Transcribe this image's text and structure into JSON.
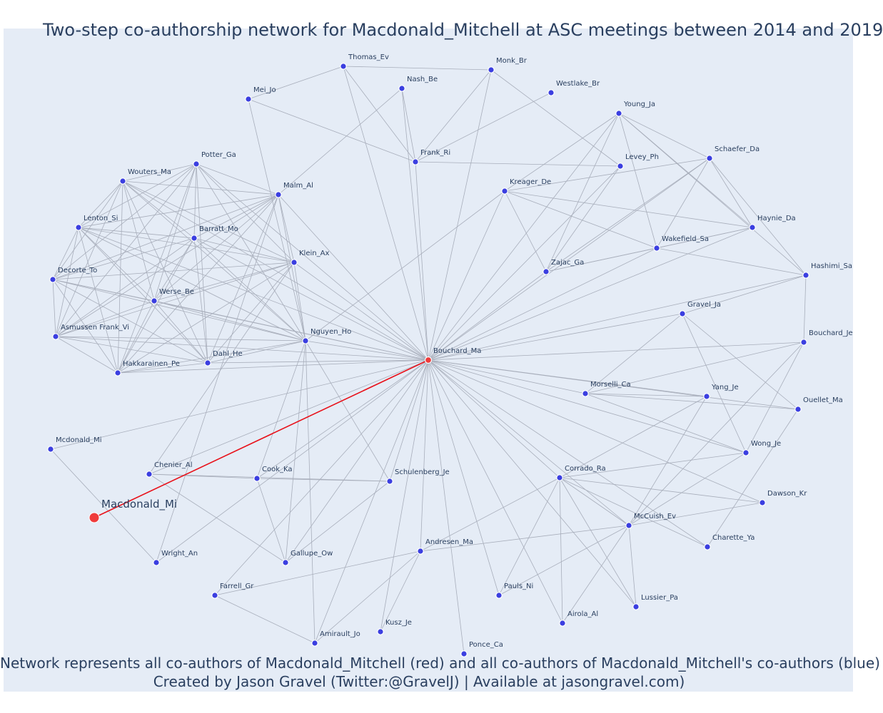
{
  "title": "Two-step co-authorship network for Macdonald_Mitchell at ASC meetings between 2014 and 2019",
  "caption_line1": "Network represents all co-authors of Macdonald_Mitchell (red) and all co-authors of Macdonald_Mitchell's co-authors (blue)",
  "caption_line2": "Created by Jason Gravel (Twitter:@GravelJ) | Available at jasongravel.com)",
  "colors": {
    "background": "#e5ecf6",
    "edge": "#a8aebb",
    "focus_edge": "#e8111a",
    "node": "#3b3fe0",
    "focus_node": "#ef3b3b",
    "text": "#2a3f5f"
  },
  "focus": "Macdonald_Mi",
  "nodes": [
    {
      "id": "Macdonald_Mi",
      "type": "focus"
    },
    {
      "id": "Bouchard_Ma",
      "type": "coauthor"
    },
    {
      "id": "Thomas_Ev",
      "type": "second"
    },
    {
      "id": "Monk_Br",
      "type": "second"
    },
    {
      "id": "Nash_Be",
      "type": "second"
    },
    {
      "id": "Mei_Jo",
      "type": "second"
    },
    {
      "id": "Westlake_Br",
      "type": "second"
    },
    {
      "id": "Young_Ja",
      "type": "second"
    },
    {
      "id": "Frank_Ri",
      "type": "second"
    },
    {
      "id": "Levey_Ph",
      "type": "second"
    },
    {
      "id": "Schaefer_Da",
      "type": "second"
    },
    {
      "id": "Potter_Ga",
      "type": "second"
    },
    {
      "id": "Wouters_Ma",
      "type": "second"
    },
    {
      "id": "Malm_Al",
      "type": "second"
    },
    {
      "id": "Kreager_De",
      "type": "second"
    },
    {
      "id": "Lenton_Si",
      "type": "second"
    },
    {
      "id": "Barratt_Mo",
      "type": "second"
    },
    {
      "id": "Haynie_Da",
      "type": "second"
    },
    {
      "id": "Wakefield_Sa",
      "type": "second"
    },
    {
      "id": "Klein_Ax",
      "type": "second"
    },
    {
      "id": "Zajac_Ga",
      "type": "second"
    },
    {
      "id": "Hashimi_Sa",
      "type": "second"
    },
    {
      "id": "Decorte_To",
      "type": "second"
    },
    {
      "id": "Werse_Be",
      "type": "second"
    },
    {
      "id": "Gravel_Ja",
      "type": "second"
    },
    {
      "id": "Asmussen Frank_Vi",
      "type": "second"
    },
    {
      "id": "Nguyen_Ho",
      "type": "second"
    },
    {
      "id": "Bouchard_Je",
      "type": "second"
    },
    {
      "id": "Dahl_He",
      "type": "second"
    },
    {
      "id": "Hakkarainen_Pe",
      "type": "second"
    },
    {
      "id": "Morselli_Ca",
      "type": "second"
    },
    {
      "id": "Yang_Je",
      "type": "second"
    },
    {
      "id": "Ouellet_Ma",
      "type": "second"
    },
    {
      "id": "Mcdonald_Mi",
      "type": "second"
    },
    {
      "id": "Wong_Je",
      "type": "second"
    },
    {
      "id": "Chenier_Al",
      "type": "second"
    },
    {
      "id": "Cook_Ka",
      "type": "second"
    },
    {
      "id": "Schulenberg_Je",
      "type": "second"
    },
    {
      "id": "Corrado_Ra",
      "type": "second"
    },
    {
      "id": "Dawson_Kr",
      "type": "second"
    },
    {
      "id": "McCuish_Ev",
      "type": "second"
    },
    {
      "id": "Andresen_Ma",
      "type": "second"
    },
    {
      "id": "Charette_Ya",
      "type": "second"
    },
    {
      "id": "Wright_An",
      "type": "second"
    },
    {
      "id": "Gallupe_Ow",
      "type": "second"
    },
    {
      "id": "Farrell_Gr",
      "type": "second"
    },
    {
      "id": "Pauls_Ni",
      "type": "second"
    },
    {
      "id": "Lussier_Pa",
      "type": "second"
    },
    {
      "id": "Kusz_Je",
      "type": "second"
    },
    {
      "id": "Airola_Al",
      "type": "second"
    },
    {
      "id": "Amirault_Jo",
      "type": "second"
    },
    {
      "id": "Ponce_Ca",
      "type": "second"
    }
  ],
  "edges": [
    [
      "Macdonald_Mi",
      "Bouchard_Ma"
    ],
    [
      "Bouchard_Ma",
      "Thomas_Ev"
    ],
    [
      "Bouchard_Ma",
      "Monk_Br"
    ],
    [
      "Bouchard_Ma",
      "Nash_Be"
    ],
    [
      "Bouchard_Ma",
      "Frank_Ri"
    ],
    [
      "Bouchard_Ma",
      "Levey_Ph"
    ],
    [
      "Bouchard_Ma",
      "Young_Ja"
    ],
    [
      "Bouchard_Ma",
      "Schaefer_Da"
    ],
    [
      "Bouchard_Ma",
      "Kreager_De"
    ],
    [
      "Bouchard_Ma",
      "Haynie_Da"
    ],
    [
      "Bouchard_Ma",
      "Wakefield_Sa"
    ],
    [
      "Bouchard_Ma",
      "Zajac_Ga"
    ],
    [
      "Bouchard_Ma",
      "Hashimi_Sa"
    ],
    [
      "Bouchard_Ma",
      "Gravel_Ja"
    ],
    [
      "Bouchard_Ma",
      "Bouchard_Je"
    ],
    [
      "Bouchard_Ma",
      "Morselli_Ca"
    ],
    [
      "Bouchard_Ma",
      "Yang_Je"
    ],
    [
      "Bouchard_Ma",
      "Ouellet_Ma"
    ],
    [
      "Bouchard_Ma",
      "Wong_Je"
    ],
    [
      "Bouchard_Ma",
      "Corrado_Ra"
    ],
    [
      "Bouchard_Ma",
      "Dawson_Kr"
    ],
    [
      "Bouchard_Ma",
      "McCuish_Ev"
    ],
    [
      "Bouchard_Ma",
      "Charette_Ya"
    ],
    [
      "Bouchard_Ma",
      "Lussier_Pa"
    ],
    [
      "Bouchard_Ma",
      "Airola_Al"
    ],
    [
      "Bouchard_Ma",
      "Pauls_Ni"
    ],
    [
      "Bouchard_Ma",
      "Ponce_Ca"
    ],
    [
      "Bouchard_Ma",
      "Kusz_Je"
    ],
    [
      "Bouchard_Ma",
      "Amirault_Jo"
    ],
    [
      "Bouchard_Ma",
      "Andresen_Ma"
    ],
    [
      "Bouchard_Ma",
      "Farrell_Gr"
    ],
    [
      "Bouchard_Ma",
      "Gallupe_Ow"
    ],
    [
      "Bouchard_Ma",
      "Schulenberg_Je"
    ],
    [
      "Bouchard_Ma",
      "Cook_Ka"
    ],
    [
      "Bouchard_Ma",
      "Wright_An"
    ],
    [
      "Bouchard_Ma",
      "Chenier_Al"
    ],
    [
      "Bouchard_Ma",
      "Mcdonald_Mi"
    ],
    [
      "Bouchard_Ma",
      "Nguyen_Ho"
    ],
    [
      "Bouchard_Ma",
      "Dahl_He"
    ],
    [
      "Bouchard_Ma",
      "Hakkarainen_Pe"
    ],
    [
      "Bouchard_Ma",
      "Asmussen Frank_Vi"
    ],
    [
      "Bouchard_Ma",
      "Werse_Be"
    ],
    [
      "Bouchard_Ma",
      "Decorte_To"
    ],
    [
      "Bouchard_Ma",
      "Klein_Ax"
    ],
    [
      "Bouchard_Ma",
      "Barratt_Mo"
    ],
    [
      "Bouchard_Ma",
      "Lenton_Si"
    ],
    [
      "Bouchard_Ma",
      "Malm_Al"
    ],
    [
      "Bouchard_Ma",
      "Wouters_Ma"
    ],
    [
      "Bouchard_Ma",
      "Potter_Ga"
    ],
    [
      "Thomas_Ev",
      "Monk_Br"
    ],
    [
      "Thomas_Ev",
      "Frank_Ri"
    ],
    [
      "Mei_Jo",
      "Frank_Ri"
    ],
    [
      "Mei_Jo",
      "Thomas_Ev"
    ],
    [
      "Monk_Br",
      "Levey_Ph"
    ],
    [
      "Monk_Br",
      "Frank_Ri"
    ],
    [
      "Westlake_Br",
      "Frank_Ri"
    ],
    [
      "Frank_Ri",
      "Levey_Ph"
    ],
    [
      "Nash_Be",
      "Malm_Al"
    ],
    [
      "Nash_Be",
      "Frank_Ri"
    ],
    [
      "Young_Ja",
      "Kreager_De"
    ],
    [
      "Young_Ja",
      "Schaefer_Da"
    ],
    [
      "Young_Ja",
      "Haynie_Da"
    ],
    [
      "Young_Ja",
      "Wakefield_Sa"
    ],
    [
      "Young_Ja",
      "Zajac_Ga"
    ],
    [
      "Young_Ja",
      "Hashimi_Sa"
    ],
    [
      "Schaefer_Da",
      "Kreager_De"
    ],
    [
      "Schaefer_Da",
      "Haynie_Da"
    ],
    [
      "Schaefer_Da",
      "Wakefield_Sa"
    ],
    [
      "Schaefer_Da",
      "Zajac_Ga"
    ],
    [
      "Schaefer_Da",
      "Hashimi_Sa"
    ],
    [
      "Kreager_De",
      "Haynie_Da"
    ],
    [
      "Kreager_De",
      "Wakefield_Sa"
    ],
    [
      "Kreager_De",
      "Zajac_Ga"
    ],
    [
      "Kreager_De",
      "Nguyen_Ho"
    ],
    [
      "Haynie_Da",
      "Wakefield_Sa"
    ],
    [
      "Haynie_Da",
      "Zajac_Ga"
    ],
    [
      "Wakefield_Sa",
      "Zajac_Ga"
    ],
    [
      "Wakefield_Sa",
      "Hashimi_Sa"
    ],
    [
      "Levey_Ph",
      "Zajac_Ga"
    ],
    [
      "Gravel_Ja",
      "Morselli_Ca"
    ],
    [
      "Gravel_Ja",
      "Wong_Je"
    ],
    [
      "Gravel_Ja",
      "Ouellet_Ma"
    ],
    [
      "Gravel_Ja",
      "Hashimi_Sa"
    ],
    [
      "Bouchard_Je",
      "Morselli_Ca"
    ],
    [
      "Bouchard_Je",
      "Wong_Je"
    ],
    [
      "Bouchard_Je",
      "Hashimi_Sa"
    ],
    [
      "Bouchard_Je",
      "McCuish_Ev"
    ],
    [
      "Morselli_Ca",
      "Ouellet_Ma"
    ],
    [
      "Morselli_Ca",
      "Yang_Je"
    ],
    [
      "Morselli_Ca",
      "Wong_Je"
    ],
    [
      "Yang_Je",
      "Corrado_Ra"
    ],
    [
      "Yang_Je",
      "McCuish_Ev"
    ],
    [
      "Ouellet_Ma",
      "Charette_Ya"
    ],
    [
      "Wong_Je",
      "Corrado_Ra"
    ],
    [
      "Wong_Je",
      "McCuish_Ev"
    ],
    [
      "Corrado_Ra",
      "McCuish_Ev"
    ],
    [
      "Corrado_Ra",
      "Dawson_Kr"
    ],
    [
      "Corrado_Ra",
      "Lussier_Pa"
    ],
    [
      "Corrado_Ra",
      "Airola_Al"
    ],
    [
      "Corrado_Ra",
      "Pauls_Ni"
    ],
    [
      "Corrado_Ra",
      "Andresen_Ma"
    ],
    [
      "Corrado_Ra",
      "Charette_Ya"
    ],
    [
      "McCuish_Ev",
      "Dawson_Kr"
    ],
    [
      "McCuish_Ev",
      "Lussier_Pa"
    ],
    [
      "McCuish_Ev",
      "Airola_Al"
    ],
    [
      "McCuish_Ev",
      "Pauls_Ni"
    ],
    [
      "McCuish_Ev",
      "Andresen_Ma"
    ],
    [
      "Andresen_Ma",
      "Farrell_Gr"
    ],
    [
      "Andresen_Ma",
      "Amirault_Jo"
    ],
    [
      "Andresen_Ma",
      "Kusz_Je"
    ],
    [
      "Farrell_Gr",
      "Amirault_Jo"
    ],
    [
      "Chenier_Al",
      "Cook_Ka"
    ],
    [
      "Chenier_Al",
      "Schulenberg_Je"
    ],
    [
      "Chenier_Al",
      "Gallupe_Ow"
    ],
    [
      "Cook_Ka",
      "Schulenberg_Je"
    ],
    [
      "Cook_Ka",
      "Gallupe_Ow"
    ],
    [
      "Cook_Ka",
      "Nguyen_Ho"
    ],
    [
      "Schulenberg_Je",
      "Gallupe_Ow"
    ],
    [
      "Mcdonald_Mi",
      "Wright_An"
    ],
    [
      "Wright_An",
      "Malm_Al"
    ],
    [
      "Amirault_Jo",
      "Nguyen_Ho"
    ],
    [
      "Gallupe_Ow",
      "Nguyen_Ho"
    ],
    [
      "Chenier_Al",
      "Klein_Ax"
    ],
    [
      "Schulenberg_Je",
      "Nguyen_Ho"
    ],
    [
      "Nguyen_Ho",
      "Mei_Jo"
    ],
    [
      "Potter_Ga",
      "Wouters_Ma"
    ],
    [
      "Potter_Ga",
      "Malm_Al"
    ],
    [
      "Potter_Ga",
      "Lenton_Si"
    ],
    [
      "Potter_Ga",
      "Barratt_Mo"
    ],
    [
      "Potter_Ga",
      "Klein_Ax"
    ],
    [
      "Potter_Ga",
      "Decorte_To"
    ],
    [
      "Potter_Ga",
      "Werse_Be"
    ],
    [
      "Potter_Ga",
      "Asmussen Frank_Vi"
    ],
    [
      "Potter_Ga",
      "Nguyen_Ho"
    ],
    [
      "Potter_Ga",
      "Dahl_He"
    ],
    [
      "Potter_Ga",
      "Hakkarainen_Pe"
    ],
    [
      "Wouters_Ma",
      "Malm_Al"
    ],
    [
      "Wouters_Ma",
      "Lenton_Si"
    ],
    [
      "Wouters_Ma",
      "Barratt_Mo"
    ],
    [
      "Wouters_Ma",
      "Klein_Ax"
    ],
    [
      "Wouters_Ma",
      "Decorte_To"
    ],
    [
      "Wouters_Ma",
      "Werse_Be"
    ],
    [
      "Wouters_Ma",
      "Asmussen Frank_Vi"
    ],
    [
      "Wouters_Ma",
      "Nguyen_Ho"
    ],
    [
      "Wouters_Ma",
      "Dahl_He"
    ],
    [
      "Wouters_Ma",
      "Hakkarainen_Pe"
    ],
    [
      "Malm_Al",
      "Lenton_Si"
    ],
    [
      "Malm_Al",
      "Barratt_Mo"
    ],
    [
      "Malm_Al",
      "Klein_Ax"
    ],
    [
      "Malm_Al",
      "Decorte_To"
    ],
    [
      "Malm_Al",
      "Werse_Be"
    ],
    [
      "Malm_Al",
      "Asmussen Frank_Vi"
    ],
    [
      "Malm_Al",
      "Nguyen_Ho"
    ],
    [
      "Malm_Al",
      "Dahl_He"
    ],
    [
      "Malm_Al",
      "Hakkarainen_Pe"
    ],
    [
      "Lenton_Si",
      "Barratt_Mo"
    ],
    [
      "Lenton_Si",
      "Klein_Ax"
    ],
    [
      "Lenton_Si",
      "Decorte_To"
    ],
    [
      "Lenton_Si",
      "Werse_Be"
    ],
    [
      "Lenton_Si",
      "Asmussen Frank_Vi"
    ],
    [
      "Lenton_Si",
      "Nguyen_Ho"
    ],
    [
      "Lenton_Si",
      "Dahl_He"
    ],
    [
      "Lenton_Si",
      "Hakkarainen_Pe"
    ],
    [
      "Barratt_Mo",
      "Klein_Ax"
    ],
    [
      "Barratt_Mo",
      "Decorte_To"
    ],
    [
      "Barratt_Mo",
      "Werse_Be"
    ],
    [
      "Barratt_Mo",
      "Asmussen Frank_Vi"
    ],
    [
      "Barratt_Mo",
      "Nguyen_Ho"
    ],
    [
      "Barratt_Mo",
      "Dahl_He"
    ],
    [
      "Barratt_Mo",
      "Hakkarainen_Pe"
    ],
    [
      "Klein_Ax",
      "Decorte_To"
    ],
    [
      "Klein_Ax",
      "Werse_Be"
    ],
    [
      "Klein_Ax",
      "Asmussen Frank_Vi"
    ],
    [
      "Klein_Ax",
      "Nguyen_Ho"
    ],
    [
      "Klein_Ax",
      "Dahl_He"
    ],
    [
      "Klein_Ax",
      "Hakkarainen_Pe"
    ],
    [
      "Decorte_To",
      "Werse_Be"
    ],
    [
      "Decorte_To",
      "Asmussen Frank_Vi"
    ],
    [
      "Decorte_To",
      "Nguyen_Ho"
    ],
    [
      "Decorte_To",
      "Dahl_He"
    ],
    [
      "Decorte_To",
      "Hakkarainen_Pe"
    ],
    [
      "Werse_Be",
      "Asmussen Frank_Vi"
    ],
    [
      "Werse_Be",
      "Nguyen_Ho"
    ],
    [
      "Werse_Be",
      "Dahl_He"
    ],
    [
      "Werse_Be",
      "Hakkarainen_Pe"
    ],
    [
      "Asmussen Frank_Vi",
      "Nguyen_Ho"
    ],
    [
      "Asmussen Frank_Vi",
      "Dahl_He"
    ],
    [
      "Asmussen Frank_Vi",
      "Hakkarainen_Pe"
    ],
    [
      "Nguyen_Ho",
      "Dahl_He"
    ],
    [
      "Nguyen_Ho",
      "Hakkarainen_Pe"
    ],
    [
      "Dahl_He",
      "Hakkarainen_Pe"
    ]
  ]
}
